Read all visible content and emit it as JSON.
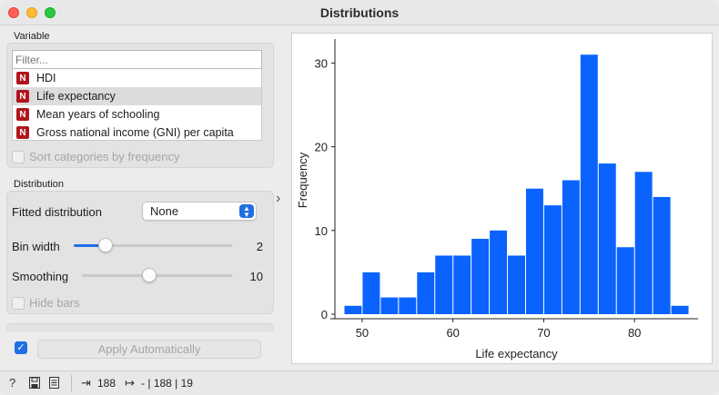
{
  "window": {
    "title": "Distributions"
  },
  "variable": {
    "section_label": "Variable",
    "filter_placeholder": "Filter...",
    "type_badge": "N",
    "items": [
      {
        "label": "HDI",
        "selected": false
      },
      {
        "label": "Life expectancy",
        "selected": true
      },
      {
        "label": "Mean years of schooling",
        "selected": false
      },
      {
        "label": "Gross national income (GNI) per capita",
        "selected": false
      }
    ],
    "sort_label": "Sort categories by frequency",
    "sort_checked": false
  },
  "distribution": {
    "section_label": "Distribution",
    "fitted_label": "Fitted distribution",
    "fitted_value": "None",
    "bin_width_label": "Bin width",
    "bin_width_value": "2",
    "bin_width_fraction": 0.2,
    "smoothing_label": "Smoothing",
    "smoothing_value": "10",
    "smoothing_fraction": 0.45,
    "hide_bars_label": "Hide bars",
    "hide_bars_checked": false
  },
  "apply": {
    "label": "Apply Automatically",
    "checked": true
  },
  "colors": {
    "bar": "#0a63ff",
    "accent": "#1f6fe5"
  },
  "chart_data": {
    "type": "bar",
    "xlabel": "Life expectancy",
    "ylabel": "Frequency",
    "bin_width": 2,
    "bins_start": [
      48,
      50,
      52,
      54,
      56,
      58,
      60,
      62,
      64,
      66,
      68,
      70,
      72,
      74,
      76,
      78,
      80,
      82,
      84
    ],
    "values": [
      1,
      5,
      2,
      2,
      5,
      7,
      7,
      9,
      10,
      7,
      15,
      13,
      16,
      31,
      18,
      8,
      17,
      14,
      1
    ],
    "xticks": [
      "50",
      "60",
      "70",
      "80"
    ],
    "yticks": [
      "0",
      "10",
      "20",
      "30"
    ],
    "xlim": [
      47,
      87
    ],
    "ylim": [
      0,
      32
    ]
  },
  "status": {
    "help_icon": "help-icon",
    "input_count": "188",
    "output_text": "- | 188 | 19"
  }
}
